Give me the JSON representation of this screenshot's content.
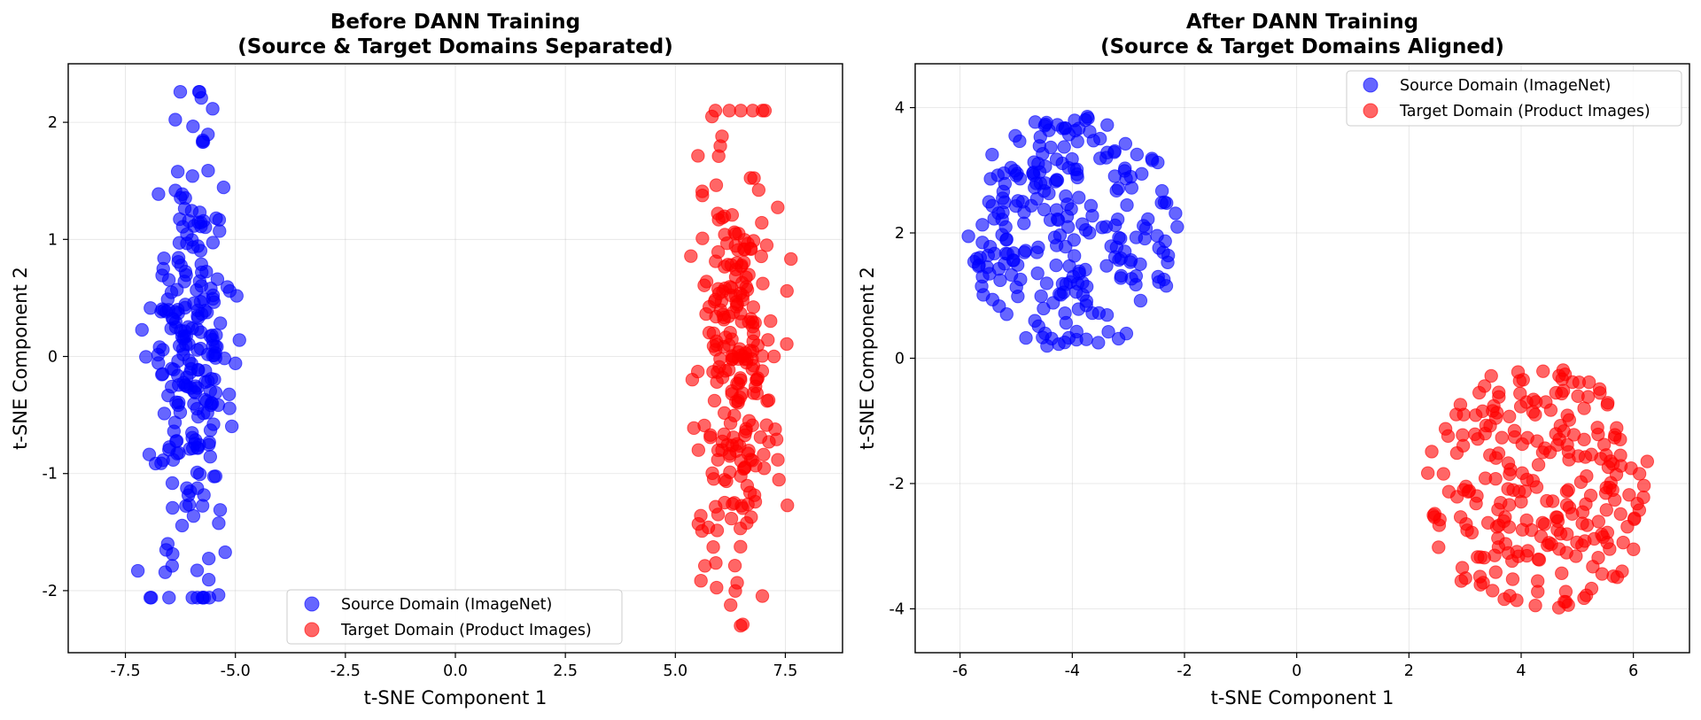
{
  "chart_data": [
    {
      "type": "scatter",
      "title": [
        "Before DANN Training",
        "(Source & Target Domains Separated)"
      ],
      "xlabel": "t-SNE Component 1",
      "ylabel": "t-SNE Component 2",
      "xlim": [
        -8.8,
        8.8
      ],
      "ylim": [
        -2.53,
        2.5
      ],
      "xticks": [
        -7.5,
        -5.0,
        -2.5,
        0.0,
        2.5,
        5.0,
        7.5
      ],
      "xtick_labels": [
        "-7.5",
        "-5.0",
        "-2.5",
        "0.0",
        "2.5",
        "5.0",
        "7.5"
      ],
      "yticks": [
        -2,
        -1,
        0,
        1,
        2
      ],
      "ytick_labels": [
        "-2",
        "-1",
        "0",
        "1",
        "2"
      ],
      "grid": true,
      "legend_position": "bottom-center",
      "series": [
        {
          "name": "Source Domain (ImageNet)",
          "color": "#0000ff",
          "cluster": {
            "x_center": -6.0,
            "x_spread": 0.85,
            "y_center": 0.0,
            "y_spread": 1.0,
            "y_range": [
              -2.06,
              2.26
            ],
            "count": 250
          }
        },
        {
          "name": "Target Domain (Product Images)",
          "color": "#ff0000",
          "cluster": {
            "x_center": 6.4,
            "x_spread": 0.85,
            "y_center": 0.0,
            "y_spread": 1.0,
            "y_range": [
              -2.3,
              2.1
            ],
            "count": 250
          }
        }
      ]
    },
    {
      "type": "scatter",
      "title": [
        "After DANN Training",
        "(Source & Target Domains Aligned)"
      ],
      "xlabel": "t-SNE Component 1",
      "ylabel": "t-SNE Component 2",
      "xlim": [
        -6.8,
        7.0
      ],
      "ylim": [
        -4.7,
        4.7
      ],
      "xticks": [
        -6,
        -4,
        -2,
        0,
        2,
        4,
        6
      ],
      "xtick_labels": [
        "-6",
        "-4",
        "-2",
        "0",
        "2",
        "4",
        "6"
      ],
      "yticks": [
        -4,
        -2,
        0,
        2,
        4
      ],
      "ytick_labels": [
        "-4",
        "-2",
        "0",
        "2",
        "4"
      ],
      "grid": true,
      "legend_position": "top-right",
      "series": [
        {
          "name": "Source Domain (ImageNet)",
          "color": "#0000ff",
          "cluster": {
            "x_center": -4.0,
            "y_center": 2.0,
            "radius": 1.9,
            "count": 250
          }
        },
        {
          "name": "Target Domain (Product Images)",
          "color": "#ff0000",
          "cluster": {
            "x_center": 4.3,
            "y_center": -2.1,
            "radius": 2.0,
            "count": 250
          }
        }
      ]
    }
  ]
}
